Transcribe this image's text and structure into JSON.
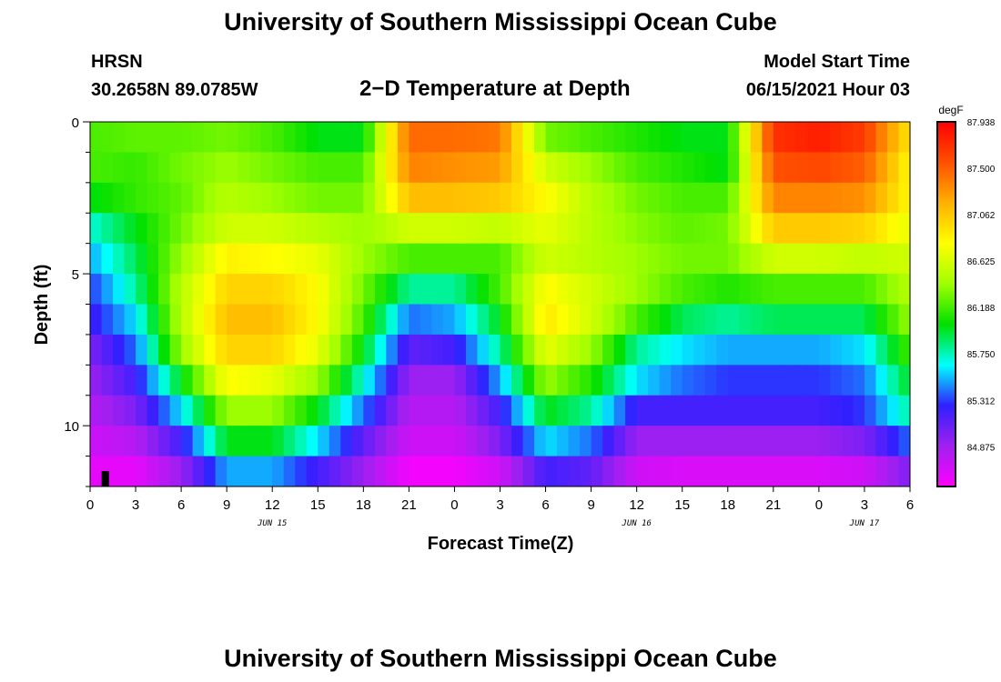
{
  "header": {
    "title_top": "University of Southern Mississippi Ocean Cube",
    "station": "HRSN",
    "coords": "30.2658N  89.0785W",
    "subtitle": "2−D Temperature at Depth",
    "model_label": "Model Start Time",
    "model_time": "06/15/2021 Hour 03",
    "title_bottom": "University of Southern Mississippi Ocean Cube"
  },
  "chart_data": {
    "type": "heatmap",
    "title": "2-D Temperature at Depth",
    "xlabel": "Forecast Time(Z)",
    "ylabel": "Depth (ft)",
    "units": "degF",
    "x_hours": [
      0,
      54
    ],
    "y_depth_ft": [
      0,
      12
    ],
    "x_tick_labels": [
      "0",
      "3",
      "6",
      "9",
      "12",
      "15",
      "18",
      "21",
      "0",
      "3",
      "6",
      "9",
      "12",
      "15",
      "18",
      "21",
      "0",
      "3",
      "6"
    ],
    "y_tick_labels": [
      "0",
      "5",
      "10"
    ],
    "y_tick_values": [
      0,
      5,
      10
    ],
    "date_labels": [
      {
        "label": "JUN 15",
        "hour": 12
      },
      {
        "label": "JUN 16",
        "hour": 36
      },
      {
        "label": "JUN 17",
        "hour": 51
      }
    ],
    "current_time_marker_hour": 1,
    "color_range": [
      84.5,
      87.938
    ],
    "colorbar_labels": [
      "87.938",
      "87.500",
      "87.062",
      "86.625",
      "86.188",
      "85.750",
      "85.312",
      "84.875"
    ],
    "colorbar_values": [
      87.938,
      87.5,
      87.062,
      86.625,
      86.188,
      85.75,
      85.312,
      84.875
    ],
    "depth_rows_ft": [
      0.5,
      1.5,
      2.5,
      3.5,
      4.5,
      5.5,
      6.5,
      7.5,
      8.5,
      9.5,
      10.5,
      11.5
    ],
    "time_samples_hours": [
      0,
      3,
      6,
      9,
      12,
      15,
      18,
      21,
      24,
      27,
      30,
      33,
      36,
      39,
      42,
      45,
      48,
      51,
      54
    ],
    "temperature_grid_degF": [
      [
        86.2,
        86.25,
        86.25,
        86.3,
        86.2,
        86.0,
        86.0,
        87.45,
        87.45,
        87.4,
        86.3,
        86.2,
        86.1,
        86.0,
        86.0,
        87.7,
        87.8,
        87.65,
        86.9
      ],
      [
        86.2,
        86.15,
        86.3,
        86.4,
        86.3,
        86.2,
        86.2,
        87.35,
        87.3,
        87.25,
        86.6,
        86.4,
        86.2,
        86.1,
        86.0,
        87.55,
        87.6,
        87.5,
        86.8
      ],
      [
        86.0,
        86.15,
        86.25,
        86.5,
        86.4,
        86.3,
        86.3,
        87.1,
        87.1,
        87.05,
        86.8,
        86.5,
        86.3,
        86.2,
        86.2,
        87.35,
        87.35,
        87.3,
        86.8
      ],
      [
        85.7,
        86.0,
        86.3,
        86.6,
        86.6,
        86.5,
        86.4,
        86.6,
        86.6,
        86.55,
        86.7,
        86.5,
        86.35,
        86.25,
        86.3,
        87.05,
        87.05,
        87.0,
        86.7
      ],
      [
        85.5,
        85.9,
        86.4,
        86.85,
        86.8,
        86.7,
        86.4,
        86.2,
        86.2,
        86.2,
        86.6,
        86.5,
        86.4,
        86.3,
        86.3,
        86.6,
        86.6,
        86.55,
        86.6
      ],
      [
        85.3,
        85.8,
        86.5,
        87.0,
        87.0,
        86.8,
        86.3,
        85.8,
        85.8,
        86.2,
        86.8,
        86.6,
        86.4,
        86.2,
        86.1,
        86.2,
        86.2,
        86.2,
        86.5
      ],
      [
        85.2,
        85.6,
        86.5,
        87.1,
        87.1,
        86.8,
        86.2,
        85.4,
        85.5,
        86.0,
        86.9,
        86.6,
        86.2,
        85.9,
        85.8,
        85.9,
        85.9,
        85.9,
        86.4
      ],
      [
        85.0,
        85.4,
        86.4,
        87.0,
        87.0,
        86.7,
        86.0,
        85.1,
        85.2,
        85.8,
        86.7,
        86.4,
        85.8,
        85.6,
        85.5,
        85.5,
        85.5,
        85.6,
        86.2
      ],
      [
        84.9,
        85.2,
        86.0,
        86.8,
        86.7,
        86.4,
        85.7,
        84.9,
        84.9,
        85.5,
        86.4,
        86.1,
        85.6,
        85.4,
        85.3,
        85.3,
        85.3,
        85.4,
        86.0
      ],
      [
        84.8,
        85.0,
        85.6,
        86.4,
        86.4,
        86.0,
        85.4,
        84.8,
        84.8,
        85.2,
        86.0,
        85.8,
        85.2,
        85.2,
        85.2,
        85.2,
        85.2,
        85.3,
        85.8
      ],
      [
        84.7,
        84.8,
        85.2,
        86.0,
        86.0,
        85.6,
        85.1,
        84.7,
        84.7,
        85.0,
        85.6,
        85.4,
        84.9,
        84.9,
        84.9,
        84.9,
        84.9,
        85.0,
        85.4
      ],
      [
        84.6,
        84.6,
        84.9,
        85.5,
        85.5,
        85.2,
        84.9,
        84.55,
        84.55,
        84.7,
        85.2,
        85.1,
        84.7,
        84.65,
        84.65,
        84.65,
        84.65,
        84.7,
        85.0
      ]
    ],
    "colors": {
      "scale": [
        "#ff00ff",
        "#a020f0",
        "#3020ff",
        "#00ffff",
        "#00e000",
        "#a0ff00",
        "#ffff00",
        "#ffb000",
        "#ff5000",
        "#ff0000"
      ]
    }
  }
}
